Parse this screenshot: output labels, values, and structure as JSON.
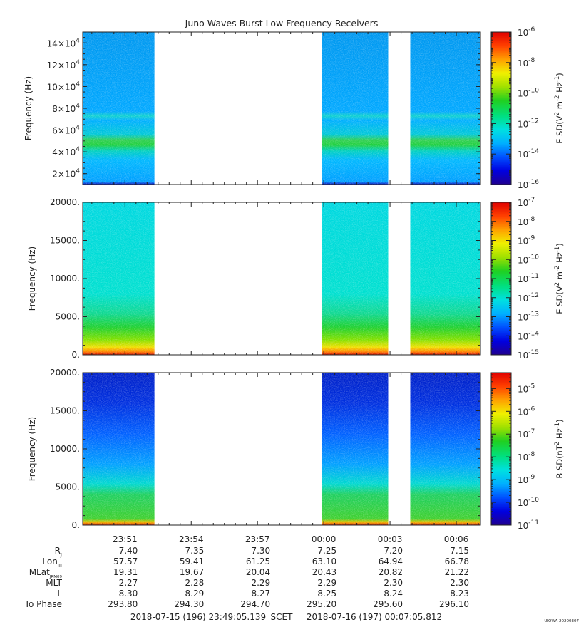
{
  "title": "Juno Waves Burst Low Frequency Receivers",
  "colors": {
    "colormap": [
      "#200090",
      "#0000e0",
      "#0050ff",
      "#00b0ff",
      "#00e0e0",
      "#00e080",
      "#20d020",
      "#a0e000",
      "#f0f000",
      "#ffa000",
      "#ff4000",
      "#e00000"
    ],
    "gap": "#ffffff"
  },
  "chart_data": [
    {
      "type": "heatmap",
      "name": "panel-1",
      "ylabel": "Frequency (Hz)",
      "ylim": [
        10000,
        150000
      ],
      "yticks": [
        {
          "value": 20000,
          "mant": "2×10",
          "exp": "4"
        },
        {
          "value": 40000,
          "mant": "4×10",
          "exp": "4"
        },
        {
          "value": 60000,
          "mant": "6×10",
          "exp": "4"
        },
        {
          "value": 80000,
          "mant": "8×10",
          "exp": "4"
        },
        {
          "value": 100000,
          "mant": "10×10",
          "exp": "4"
        },
        {
          "value": 120000,
          "mant": "12×10",
          "exp": "4"
        },
        {
          "value": 140000,
          "mant": "14×10",
          "exp": "4"
        }
      ],
      "colorbar": {
        "label_parts": [
          "E SD(V",
          "2",
          " m",
          "-2",
          " Hz",
          "-1",
          ")"
        ],
        "scale": "log",
        "range_exp": [
          -16,
          -6
        ],
        "ticks_exp": [
          -6,
          -8,
          -10,
          -12,
          -14,
          -16
        ]
      }
    },
    {
      "type": "heatmap",
      "name": "panel-2",
      "ylabel": "Frequency (Hz)",
      "ylim": [
        0,
        20000
      ],
      "yticks": [
        {
          "value": 0,
          "label": "0."
        },
        {
          "value": 5000,
          "label": "5000."
        },
        {
          "value": 10000,
          "label": "10000."
        },
        {
          "value": 15000,
          "label": "15000."
        },
        {
          "value": 20000,
          "label": "20000."
        }
      ],
      "colorbar": {
        "label_parts": [
          "E SD(V",
          "2",
          " m",
          "-2",
          " Hz",
          "-1",
          ")"
        ],
        "scale": "log",
        "range_exp": [
          -15,
          -7
        ],
        "ticks_exp": [
          -7,
          -8,
          -9,
          -10,
          -11,
          -12,
          -13,
          -14,
          -15
        ]
      }
    },
    {
      "type": "heatmap",
      "name": "panel-3",
      "ylabel": "Frequency (Hz)",
      "ylim": [
        0,
        20000
      ],
      "yticks": [
        {
          "value": 0,
          "label": "0."
        },
        {
          "value": 5000,
          "label": "5000."
        },
        {
          "value": 10000,
          "label": "10000."
        },
        {
          "value": 15000,
          "label": "15000."
        },
        {
          "value": 20000,
          "label": "20000."
        }
      ],
      "colorbar": {
        "label_parts": [
          "B SD(nT",
          "2",
          " Hz",
          "-1",
          ")"
        ],
        "scale": "log",
        "range_exp": [
          -11,
          -4.3
        ],
        "ticks_exp": [
          -5,
          -6,
          -7,
          -8,
          -9,
          -10,
          -11
        ]
      }
    }
  ],
  "time_axis": {
    "start": "23:49:05.139",
    "end": "00:07:05.812",
    "tick_labels": [
      "23:51",
      "23:54",
      "23:57",
      "00:00",
      "00:03",
      "00:06"
    ],
    "data_intervals": [
      [
        "23:49:05",
        "23:52:20"
      ],
      [
        "23:59:55",
        "00:02:55"
      ],
      [
        "00:03:55",
        "00:07:05"
      ]
    ],
    "gaps": [
      [
        "23:52:20",
        "23:59:55"
      ],
      [
        "00:02:55",
        "00:03:55"
      ]
    ]
  },
  "ephemeris": {
    "rows": [
      {
        "label": "R",
        "sub": "J",
        "values": [
          "7.40",
          "7.35",
          "7.30",
          "7.25",
          "7.20",
          "7.15"
        ]
      },
      {
        "label": "Lon",
        "sub": "III",
        "values": [
          "57.57",
          "59.41",
          "61.25",
          "63.10",
          "64.94",
          "66.78"
        ]
      },
      {
        "label": "MLat",
        "sub": "JRM09",
        "values": [
          "19.31",
          "19.67",
          "20.04",
          "20.43",
          "20.82",
          "21.22"
        ]
      },
      {
        "label": "MLT",
        "sub": "",
        "values": [
          "2.27",
          "2.28",
          "2.29",
          "2.29",
          "2.30",
          "2.30"
        ]
      },
      {
        "label": "L",
        "sub": "",
        "values": [
          "8.30",
          "8.29",
          "8.27",
          "8.25",
          "8.24",
          "8.23"
        ]
      },
      {
        "label": "Io Phase",
        "sub": "",
        "values": [
          "293.80",
          "294.30",
          "294.70",
          "295.20",
          "295.60",
          "296.10"
        ]
      }
    ]
  },
  "footer": {
    "start_label": "2018-07-15 (196) 23:49:05.139",
    "scet_label": "SCET",
    "end_label": "2018-07-16 (197) 00:07:05.812",
    "credit": "UIOWA 20200307"
  }
}
